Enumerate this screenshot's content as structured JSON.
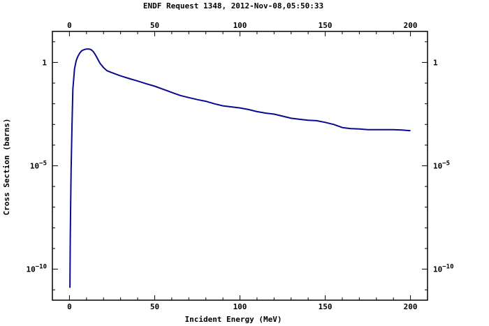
{
  "chart_data": {
    "type": "line",
    "title": "ENDF Request 1348, 2012-Nov-08,05:50:33",
    "xlabel": "Incident Energy (MeV)",
    "ylabel": "Cross Section (barns)",
    "xlim": [
      -10,
      210
    ],
    "ylim_log10": [
      -11.5,
      1.5
    ],
    "y_scale": "log",
    "x_ticks": [
      0,
      50,
      100,
      150,
      200
    ],
    "x_tick_labels": [
      "0",
      "50",
      "100",
      "150",
      "200"
    ],
    "y_ticks": [
      {
        "base": "1",
        "exp": ""
      },
      {
        "base": "10",
        "exp": "−5"
      },
      {
        "base": "10",
        "exp": "−10"
      }
    ],
    "grid": false,
    "line_color": "#0a0a8c",
    "series": [
      {
        "x": [
          0.3,
          0.5,
          0.7,
          1,
          1.5,
          2,
          3,
          4,
          5,
          6,
          7,
          8,
          9,
          10,
          11,
          12,
          13,
          14,
          15,
          16,
          17,
          18,
          19,
          20,
          22,
          25,
          30,
          35,
          40,
          45,
          50,
          55,
          60,
          65,
          70,
          75,
          80,
          85,
          90,
          95,
          100,
          105,
          110,
          115,
          120,
          125,
          130,
          135,
          140,
          145,
          150,
          155,
          160,
          165,
          170,
          175,
          180,
          185,
          190,
          195,
          200
        ],
        "y_log10": [
          -10.9,
          -8.5,
          -7,
          -5.2,
          -3,
          -1.3,
          -0.3,
          0.1,
          0.3,
          0.45,
          0.55,
          0.6,
          0.63,
          0.65,
          0.65,
          0.64,
          0.6,
          0.52,
          0.4,
          0.25,
          0.1,
          -0.05,
          -0.15,
          -0.25,
          -0.4,
          -0.5,
          -0.65,
          -0.78,
          -0.9,
          -1.03,
          -1.15,
          -1.3,
          -1.45,
          -1.6,
          -1.7,
          -1.8,
          -1.88,
          -2.0,
          -2.1,
          -2.15,
          -2.2,
          -2.28,
          -2.38,
          -2.45,
          -2.5,
          -2.6,
          -2.7,
          -2.75,
          -2.8,
          -2.82,
          -2.9,
          -3.0,
          -3.15,
          -3.2,
          -3.22,
          -3.25,
          -3.25,
          -3.25,
          -3.25,
          -3.27,
          -3.3
        ]
      }
    ]
  }
}
